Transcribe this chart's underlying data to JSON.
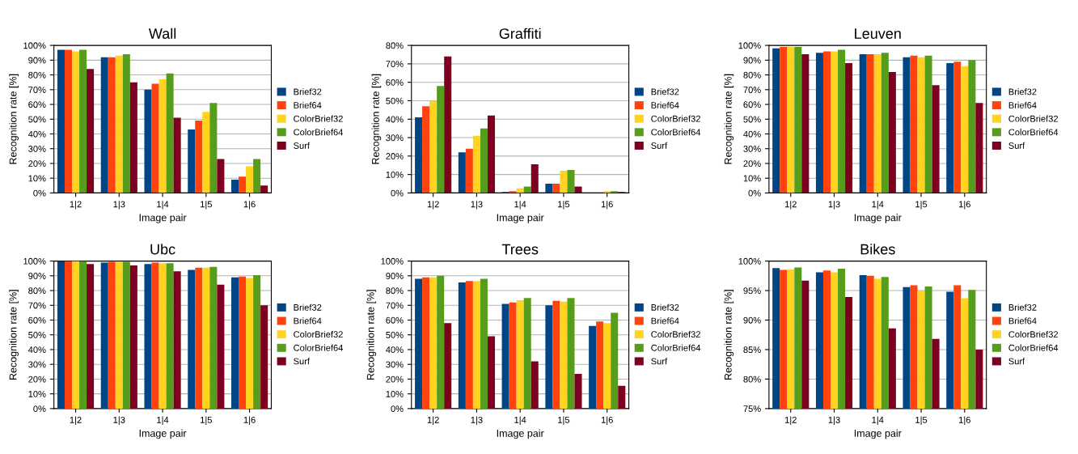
{
  "chart_data": [
    {
      "type": "bar",
      "title": "Wall",
      "xlabel": "Image pair",
      "ylabel": "Recognition rate [%]",
      "categories": [
        "1|2",
        "1|3",
        "1|4",
        "1|5",
        "1|6"
      ],
      "ylim": [
        0,
        100
      ],
      "yticks": [
        {
          "value": 0,
          "label": "0%"
        },
        {
          "value": 10,
          "label": "10%"
        },
        {
          "value": 20,
          "label": "20%"
        },
        {
          "value": 30,
          "label": "30%"
        },
        {
          "value": 40,
          "label": "40%"
        },
        {
          "value": 50,
          "label": "50%"
        },
        {
          "value": 60,
          "label": "60%"
        },
        {
          "value": 70,
          "label": "70%"
        },
        {
          "value": 80,
          "label": "80%"
        },
        {
          "value": 90,
          "label": "90%"
        },
        {
          "value": 100,
          "label": "100%"
        }
      ],
      "grid": "y",
      "legend": "right",
      "series": [
        {
          "name": "Brief32",
          "color": "#004586",
          "values": [
            97,
            92,
            70,
            43,
            9
          ]
        },
        {
          "name": "Brief64",
          "color": "#ff420e",
          "values": [
            97,
            92,
            74,
            49,
            11
          ]
        },
        {
          "name": "ColorBrief32",
          "color": "#ffd320",
          "values": [
            96,
            93,
            77,
            55,
            18
          ]
        },
        {
          "name": "ColorBrief64",
          "color": "#579d1c",
          "values": [
            97,
            94,
            81,
            61,
            23
          ]
        },
        {
          "name": "Surf",
          "color": "#7e0021",
          "values": [
            84,
            75,
            51,
            23,
            5
          ]
        }
      ]
    },
    {
      "type": "bar",
      "title": "Graffiti",
      "xlabel": "Image pair",
      "ylabel": "Recognition rate [%]",
      "categories": [
        "1|2",
        "1|3",
        "1|4",
        "1|5",
        "1|6"
      ],
      "ylim": [
        0,
        80
      ],
      "yticks": [
        {
          "value": 0,
          "label": "0%"
        },
        {
          "value": 10,
          "label": "10%"
        },
        {
          "value": 20,
          "label": "20%"
        },
        {
          "value": 30,
          "label": "30%"
        },
        {
          "value": 40,
          "label": "40%"
        },
        {
          "value": 50,
          "label": "50%"
        },
        {
          "value": 60,
          "label": "60%"
        },
        {
          "value": 70,
          "label": "70%"
        },
        {
          "value": 80,
          "label": "80%"
        }
      ],
      "grid": "y",
      "legend": "right",
      "series": [
        {
          "name": "Brief32",
          "color": "#004586",
          "values": [
            41,
            22,
            0.5,
            5,
            0
          ]
        },
        {
          "name": "Brief64",
          "color": "#ff420e",
          "values": [
            47,
            24,
            1,
            5,
            0
          ]
        },
        {
          "name": "ColorBrief32",
          "color": "#ffd320",
          "values": [
            50,
            31,
            2.5,
            12,
            1
          ]
        },
        {
          "name": "ColorBrief64",
          "color": "#579d1c",
          "values": [
            58,
            35,
            3.5,
            12.5,
            1
          ]
        },
        {
          "name": "Surf",
          "color": "#7e0021",
          "values": [
            74,
            42,
            15.5,
            3.5,
            0.5
          ]
        }
      ]
    },
    {
      "type": "bar",
      "title": "Leuven",
      "xlabel": "Image pair",
      "ylabel": "Recognition rate [%]",
      "categories": [
        "1|2",
        "1|3",
        "1|4",
        "1|5",
        "1|6"
      ],
      "ylim": [
        0,
        100
      ],
      "yticks": [
        {
          "value": 0,
          "label": "0%"
        },
        {
          "value": 10,
          "label": "10%"
        },
        {
          "value": 20,
          "label": "20%"
        },
        {
          "value": 30,
          "label": "30%"
        },
        {
          "value": 40,
          "label": "40%"
        },
        {
          "value": 50,
          "label": "50%"
        },
        {
          "value": 60,
          "label": "60%"
        },
        {
          "value": 70,
          "label": "70%"
        },
        {
          "value": 80,
          "label": "80%"
        },
        {
          "value": 90,
          "label": "90%"
        },
        {
          "value": 100,
          "label": "100%"
        }
      ],
      "grid": "y",
      "legend": "right",
      "series": [
        {
          "name": "Brief32",
          "color": "#004586",
          "values": [
            98,
            95,
            94,
            92,
            88
          ]
        },
        {
          "name": "Brief64",
          "color": "#ff420e",
          "values": [
            99,
            96,
            94,
            93,
            89
          ]
        },
        {
          "name": "ColorBrief32",
          "color": "#ffd320",
          "values": [
            99,
            96,
            94,
            92,
            86
          ]
        },
        {
          "name": "ColorBrief64",
          "color": "#579d1c",
          "values": [
            99,
            97,
            95,
            93,
            90
          ]
        },
        {
          "name": "Surf",
          "color": "#7e0021",
          "values": [
            94,
            88,
            82,
            73,
            61
          ]
        }
      ]
    },
    {
      "type": "bar",
      "title": "Ubc",
      "xlabel": "Image pair",
      "ylabel": "Recognition rate [%]",
      "categories": [
        "1|2",
        "1|3",
        "1|4",
        "1|5",
        "1|6"
      ],
      "ylim": [
        0,
        100
      ],
      "yticks": [
        {
          "value": 0,
          "label": "0%"
        },
        {
          "value": 10,
          "label": "10%"
        },
        {
          "value": 20,
          "label": "20%"
        },
        {
          "value": 30,
          "label": "30%"
        },
        {
          "value": 40,
          "label": "40%"
        },
        {
          "value": 50,
          "label": "50%"
        },
        {
          "value": 60,
          "label": "60%"
        },
        {
          "value": 70,
          "label": "70%"
        },
        {
          "value": 80,
          "label": "80%"
        },
        {
          "value": 90,
          "label": "90%"
        },
        {
          "value": 100,
          "label": "100%"
        }
      ],
      "grid": "y",
      "legend": "right",
      "series": [
        {
          "name": "Brief32",
          "color": "#004586",
          "values": [
            100,
            99,
            98,
            94,
            89
          ]
        },
        {
          "name": "Brief64",
          "color": "#ff420e",
          "values": [
            100,
            99.5,
            99,
            95.5,
            89.5
          ]
        },
        {
          "name": "ColorBrief32",
          "color": "#ffd320",
          "values": [
            100,
            99.5,
            98.5,
            95.5,
            88.5
          ]
        },
        {
          "name": "ColorBrief64",
          "color": "#579d1c",
          "values": [
            100,
            99.5,
            98.5,
            96,
            90.5
          ]
        },
        {
          "name": "Surf",
          "color": "#7e0021",
          "values": [
            98,
            97,
            93,
            84,
            70
          ]
        }
      ]
    },
    {
      "type": "bar",
      "title": "Trees",
      "xlabel": "Image pair",
      "ylabel": "Recognition rate [%]",
      "categories": [
        "1|2",
        "1|3",
        "1|4",
        "1|5",
        "1|6"
      ],
      "ylim": [
        0,
        100
      ],
      "yticks": [
        {
          "value": 0,
          "label": "0%"
        },
        {
          "value": 10,
          "label": "10%"
        },
        {
          "value": 20,
          "label": "20%"
        },
        {
          "value": 30,
          "label": "30%"
        },
        {
          "value": 40,
          "label": "40%"
        },
        {
          "value": 50,
          "label": "50%"
        },
        {
          "value": 60,
          "label": "60%"
        },
        {
          "value": 70,
          "label": "70%"
        },
        {
          "value": 80,
          "label": "80%"
        },
        {
          "value": 90,
          "label": "90%"
        },
        {
          "value": 100,
          "label": "100%"
        }
      ],
      "grid": "y",
      "legend": "right",
      "series": [
        {
          "name": "Brief32",
          "color": "#004586",
          "values": [
            88,
            85.5,
            71,
            70,
            56
          ]
        },
        {
          "name": "Brief64",
          "color": "#ff420e",
          "values": [
            89,
            86.5,
            72,
            73,
            59
          ]
        },
        {
          "name": "ColorBrief32",
          "color": "#ffd320",
          "values": [
            89,
            86.5,
            73.5,
            72.5,
            58
          ]
        },
        {
          "name": "ColorBrief64",
          "color": "#579d1c",
          "values": [
            90,
            88,
            75,
            75,
            65
          ]
        },
        {
          "name": "Surf",
          "color": "#7e0021",
          "values": [
            58,
            49,
            32,
            23.5,
            15.5
          ]
        }
      ]
    },
    {
      "type": "bar",
      "title": "Bikes",
      "xlabel": "Image pair",
      "ylabel": "Recognition rate [%]",
      "categories": [
        "1|2",
        "1|3",
        "1|4",
        "1|5",
        "1|6"
      ],
      "ylim": [
        75,
        100
      ],
      "yticks": [
        {
          "value": 75,
          "label": "75%"
        },
        {
          "value": 80,
          "label": "80%"
        },
        {
          "value": 85,
          "label": "85%"
        },
        {
          "value": 90,
          "label": "90%"
        },
        {
          "value": 95,
          "label": "95%"
        },
        {
          "value": 100,
          "label": "100%"
        }
      ],
      "grid": "y",
      "legend": "right",
      "series": [
        {
          "name": "Brief32",
          "color": "#004586",
          "values": [
            98.8,
            98.1,
            97.6,
            95.6,
            94.8
          ]
        },
        {
          "name": "Brief64",
          "color": "#ff420e",
          "values": [
            98.5,
            98.4,
            97.5,
            95.9,
            95.9
          ]
        },
        {
          "name": "ColorBrief32",
          "color": "#ffd320",
          "values": [
            98.6,
            98.1,
            97.0,
            95.0,
            93.7
          ]
        },
        {
          "name": "ColorBrief64",
          "color": "#579d1c",
          "values": [
            98.9,
            98.7,
            97.3,
            95.7,
            95.1
          ]
        },
        {
          "name": "Surf",
          "color": "#7e0021",
          "values": [
            96.7,
            93.9,
            88.6,
            86.8,
            85.0
          ]
        }
      ]
    }
  ]
}
